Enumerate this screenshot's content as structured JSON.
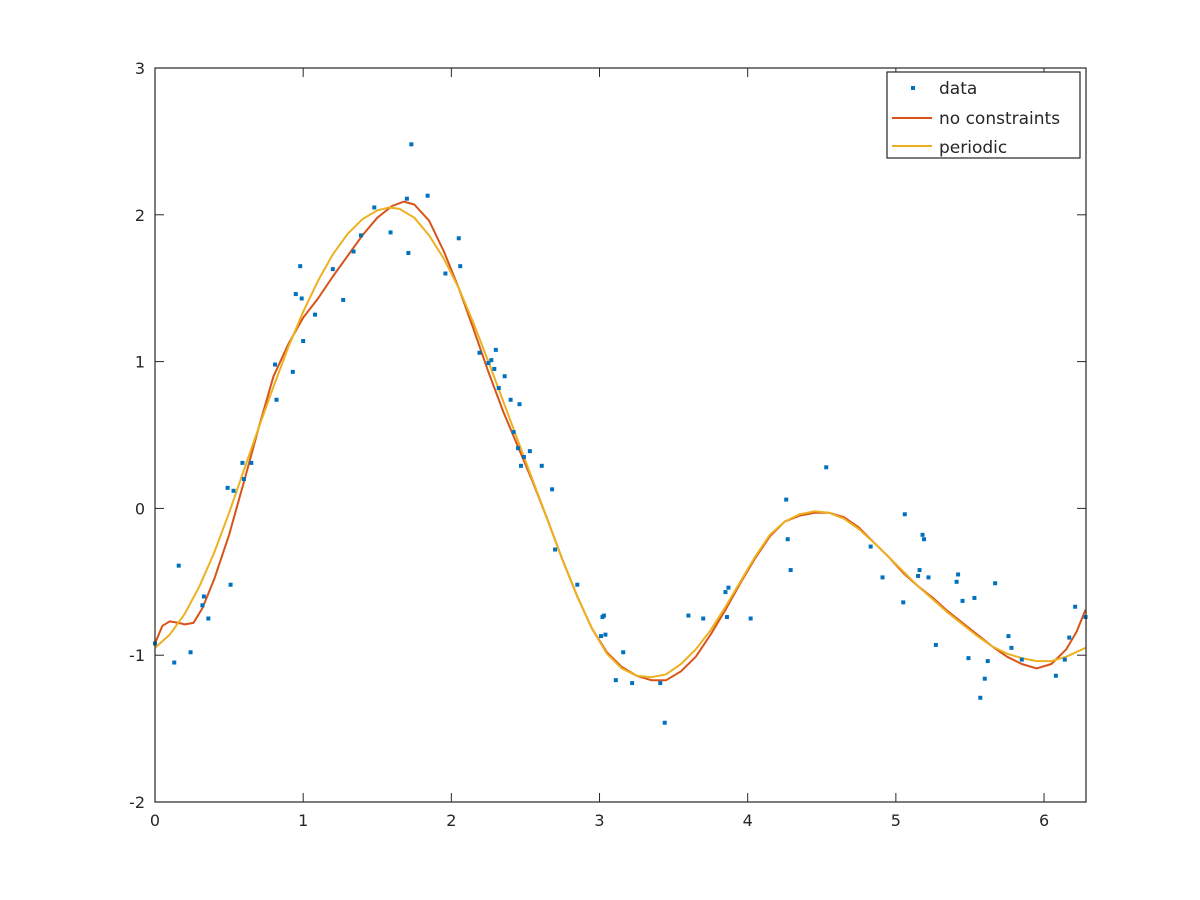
{
  "chart_data": {
    "type": "scatter",
    "title": "",
    "xlabel": "",
    "ylabel": "",
    "xlim": [
      0,
      6.2832
    ],
    "ylim": [
      -2,
      3
    ],
    "xticks": [
      0,
      1,
      2,
      3,
      4,
      5,
      6
    ],
    "yticks": [
      -2,
      -1,
      0,
      1,
      2,
      3
    ],
    "xtick_labels": [
      "0",
      "1",
      "2",
      "3",
      "4",
      "5",
      "6"
    ],
    "ytick_labels": [
      "-2",
      "-1",
      "0",
      "1",
      "2",
      "3"
    ],
    "grid": false,
    "legend_position": "top-right",
    "legend": [
      "data",
      "no constraints",
      "periodic"
    ],
    "colors": {
      "data": "#0072bd",
      "no_constraints": "#d95319",
      "periodic": "#edb120",
      "axes": "#262626"
    },
    "series": [
      {
        "name": "data",
        "kind": "markers",
        "points": [
          [
            0.0,
            -0.92
          ],
          [
            0.13,
            -1.05
          ],
          [
            0.16,
            -0.39
          ],
          [
            0.24,
            -0.98
          ],
          [
            0.32,
            -0.66
          ],
          [
            0.33,
            -0.6
          ],
          [
            0.36,
            -0.75
          ],
          [
            0.49,
            0.14
          ],
          [
            0.51,
            -0.52
          ],
          [
            0.53,
            0.12
          ],
          [
            0.59,
            0.31
          ],
          [
            0.6,
            0.2
          ],
          [
            0.65,
            0.31
          ],
          [
            0.81,
            0.98
          ],
          [
            0.82,
            0.74
          ],
          [
            0.93,
            0.93
          ],
          [
            0.95,
            1.46
          ],
          [
            0.98,
            1.65
          ],
          [
            0.99,
            1.43
          ],
          [
            1.0,
            1.14
          ],
          [
            1.08,
            1.32
          ],
          [
            1.2,
            1.63
          ],
          [
            1.27,
            1.42
          ],
          [
            1.34,
            1.75
          ],
          [
            1.39,
            1.86
          ],
          [
            1.48,
            2.05
          ],
          [
            1.59,
            1.88
          ],
          [
            1.7,
            2.11
          ],
          [
            1.71,
            1.74
          ],
          [
            1.73,
            2.48
          ],
          [
            1.84,
            2.13
          ],
          [
            1.96,
            1.6
          ],
          [
            2.05,
            1.84
          ],
          [
            2.06,
            1.65
          ],
          [
            2.19,
            1.06
          ],
          [
            2.25,
            0.99
          ],
          [
            2.27,
            1.01
          ],
          [
            2.29,
            0.95
          ],
          [
            2.3,
            1.08
          ],
          [
            2.32,
            0.82
          ],
          [
            2.36,
            0.9
          ],
          [
            2.4,
            0.74
          ],
          [
            2.42,
            0.52
          ],
          [
            2.45,
            0.41
          ],
          [
            2.46,
            0.71
          ],
          [
            2.47,
            0.29
          ],
          [
            2.49,
            0.35
          ],
          [
            2.53,
            0.39
          ],
          [
            2.61,
            0.29
          ],
          [
            2.68,
            0.13
          ],
          [
            2.7,
            -0.28
          ],
          [
            2.85,
            -0.52
          ],
          [
            3.01,
            -0.87
          ],
          [
            3.02,
            -0.74
          ],
          [
            3.03,
            -0.73
          ],
          [
            3.04,
            -0.86
          ],
          [
            3.11,
            -1.17
          ],
          [
            3.16,
            -0.98
          ],
          [
            3.22,
            -1.19
          ],
          [
            3.41,
            -1.19
          ],
          [
            3.44,
            -1.46
          ],
          [
            3.6,
            -0.73
          ],
          [
            3.7,
            -0.75
          ],
          [
            3.85,
            -0.57
          ],
          [
            3.86,
            -0.74
          ],
          [
            3.87,
            -0.54
          ],
          [
            4.02,
            -0.75
          ],
          [
            4.26,
            0.06
          ],
          [
            4.27,
            -0.21
          ],
          [
            4.29,
            -0.42
          ],
          [
            4.53,
            0.28
          ],
          [
            4.83,
            -0.26
          ],
          [
            4.91,
            -0.47
          ],
          [
            5.05,
            -0.64
          ],
          [
            5.06,
            -0.04
          ],
          [
            5.15,
            -0.46
          ],
          [
            5.16,
            -0.42
          ],
          [
            5.18,
            -0.18
          ],
          [
            5.19,
            -0.21
          ],
          [
            5.22,
            -0.47
          ],
          [
            5.27,
            -0.93
          ],
          [
            5.41,
            -0.5
          ],
          [
            5.42,
            -0.45
          ],
          [
            5.45,
            -0.63
          ],
          [
            5.49,
            -1.02
          ],
          [
            5.53,
            -0.61
          ],
          [
            5.57,
            -1.29
          ],
          [
            5.6,
            -1.16
          ],
          [
            5.62,
            -1.04
          ],
          [
            5.67,
            -0.51
          ],
          [
            5.76,
            -0.87
          ],
          [
            5.78,
            -0.95
          ],
          [
            5.85,
            -1.03
          ],
          [
            6.08,
            -1.14
          ],
          [
            6.14,
            -1.03
          ],
          [
            6.17,
            -0.88
          ],
          [
            6.21,
            -0.67
          ],
          [
            6.28,
            -0.74
          ]
        ]
      },
      {
        "name": "no constraints",
        "kind": "line",
        "points": [
          [
            0.0,
            -0.92
          ],
          [
            0.05,
            -0.8
          ],
          [
            0.1,
            -0.77
          ],
          [
            0.16,
            -0.78
          ],
          [
            0.2,
            -0.79
          ],
          [
            0.26,
            -0.78
          ],
          [
            0.32,
            -0.68
          ],
          [
            0.4,
            -0.48
          ],
          [
            0.5,
            -0.18
          ],
          [
            0.6,
            0.18
          ],
          [
            0.7,
            0.55
          ],
          [
            0.8,
            0.9
          ],
          [
            0.9,
            1.12
          ],
          [
            1.0,
            1.3
          ],
          [
            1.1,
            1.43
          ],
          [
            1.2,
            1.58
          ],
          [
            1.3,
            1.72
          ],
          [
            1.4,
            1.86
          ],
          [
            1.5,
            1.98
          ],
          [
            1.6,
            2.06
          ],
          [
            1.68,
            2.09
          ],
          [
            1.75,
            2.07
          ],
          [
            1.85,
            1.96
          ],
          [
            1.95,
            1.75
          ],
          [
            2.05,
            1.5
          ],
          [
            2.15,
            1.22
          ],
          [
            2.25,
            0.93
          ],
          [
            2.35,
            0.66
          ],
          [
            2.45,
            0.42
          ],
          [
            2.55,
            0.18
          ],
          [
            2.65,
            -0.08
          ],
          [
            2.75,
            -0.35
          ],
          [
            2.85,
            -0.6
          ],
          [
            2.95,
            -0.82
          ],
          [
            3.05,
            -0.98
          ],
          [
            3.15,
            -1.08
          ],
          [
            3.25,
            -1.14
          ],
          [
            3.35,
            -1.17
          ],
          [
            3.45,
            -1.17
          ],
          [
            3.55,
            -1.11
          ],
          [
            3.65,
            -1.01
          ],
          [
            3.75,
            -0.86
          ],
          [
            3.85,
            -0.69
          ],
          [
            3.95,
            -0.51
          ],
          [
            4.05,
            -0.34
          ],
          [
            4.15,
            -0.19
          ],
          [
            4.25,
            -0.09
          ],
          [
            4.35,
            -0.05
          ],
          [
            4.45,
            -0.03
          ],
          [
            4.55,
            -0.03
          ],
          [
            4.65,
            -0.06
          ],
          [
            4.75,
            -0.13
          ],
          [
            4.85,
            -0.23
          ],
          [
            4.95,
            -0.33
          ],
          [
            5.05,
            -0.44
          ],
          [
            5.15,
            -0.53
          ],
          [
            5.25,
            -0.61
          ],
          [
            5.35,
            -0.7
          ],
          [
            5.45,
            -0.78
          ],
          [
            5.55,
            -0.86
          ],
          [
            5.65,
            -0.94
          ],
          [
            5.75,
            -1.01
          ],
          [
            5.85,
            -1.06
          ],
          [
            5.95,
            -1.09
          ],
          [
            6.05,
            -1.06
          ],
          [
            6.15,
            -0.96
          ],
          [
            6.22,
            -0.84
          ],
          [
            6.28,
            -0.69
          ]
        ]
      },
      {
        "name": "periodic",
        "kind": "line",
        "points": [
          [
            0.0,
            -0.95
          ],
          [
            0.1,
            -0.86
          ],
          [
            0.2,
            -0.72
          ],
          [
            0.3,
            -0.53
          ],
          [
            0.4,
            -0.3
          ],
          [
            0.5,
            -0.03
          ],
          [
            0.6,
            0.26
          ],
          [
            0.7,
            0.55
          ],
          [
            0.8,
            0.83
          ],
          [
            0.9,
            1.1
          ],
          [
            1.0,
            1.34
          ],
          [
            1.1,
            1.55
          ],
          [
            1.2,
            1.73
          ],
          [
            1.3,
            1.87
          ],
          [
            1.4,
            1.97
          ],
          [
            1.5,
            2.03
          ],
          [
            1.58,
            2.05
          ],
          [
            1.65,
            2.04
          ],
          [
            1.75,
            1.98
          ],
          [
            1.85,
            1.86
          ],
          [
            1.95,
            1.7
          ],
          [
            2.05,
            1.5
          ],
          [
            2.15,
            1.26
          ],
          [
            2.25,
            1.0
          ],
          [
            2.35,
            0.73
          ],
          [
            2.45,
            0.46
          ],
          [
            2.55,
            0.19
          ],
          [
            2.65,
            -0.08
          ],
          [
            2.75,
            -0.35
          ],
          [
            2.85,
            -0.6
          ],
          [
            2.95,
            -0.82
          ],
          [
            3.05,
            -0.99
          ],
          [
            3.15,
            -1.09
          ],
          [
            3.25,
            -1.14
          ],
          [
            3.35,
            -1.15
          ],
          [
            3.45,
            -1.13
          ],
          [
            3.55,
            -1.06
          ],
          [
            3.65,
            -0.96
          ],
          [
            3.75,
            -0.83
          ],
          [
            3.85,
            -0.67
          ],
          [
            3.95,
            -0.5
          ],
          [
            4.05,
            -0.33
          ],
          [
            4.15,
            -0.18
          ],
          [
            4.25,
            -0.09
          ],
          [
            4.35,
            -0.04
          ],
          [
            4.45,
            -0.02
          ],
          [
            4.55,
            -0.03
          ],
          [
            4.65,
            -0.07
          ],
          [
            4.75,
            -0.14
          ],
          [
            4.85,
            -0.23
          ],
          [
            4.95,
            -0.33
          ],
          [
            5.05,
            -0.43
          ],
          [
            5.15,
            -0.53
          ],
          [
            5.25,
            -0.62
          ],
          [
            5.35,
            -0.71
          ],
          [
            5.45,
            -0.79
          ],
          [
            5.55,
            -0.87
          ],
          [
            5.65,
            -0.94
          ],
          [
            5.75,
            -0.99
          ],
          [
            5.85,
            -1.02
          ],
          [
            5.95,
            -1.04
          ],
          [
            6.05,
            -1.04
          ],
          [
            6.15,
            -1.01
          ],
          [
            6.28,
            -0.95
          ]
        ]
      }
    ]
  }
}
